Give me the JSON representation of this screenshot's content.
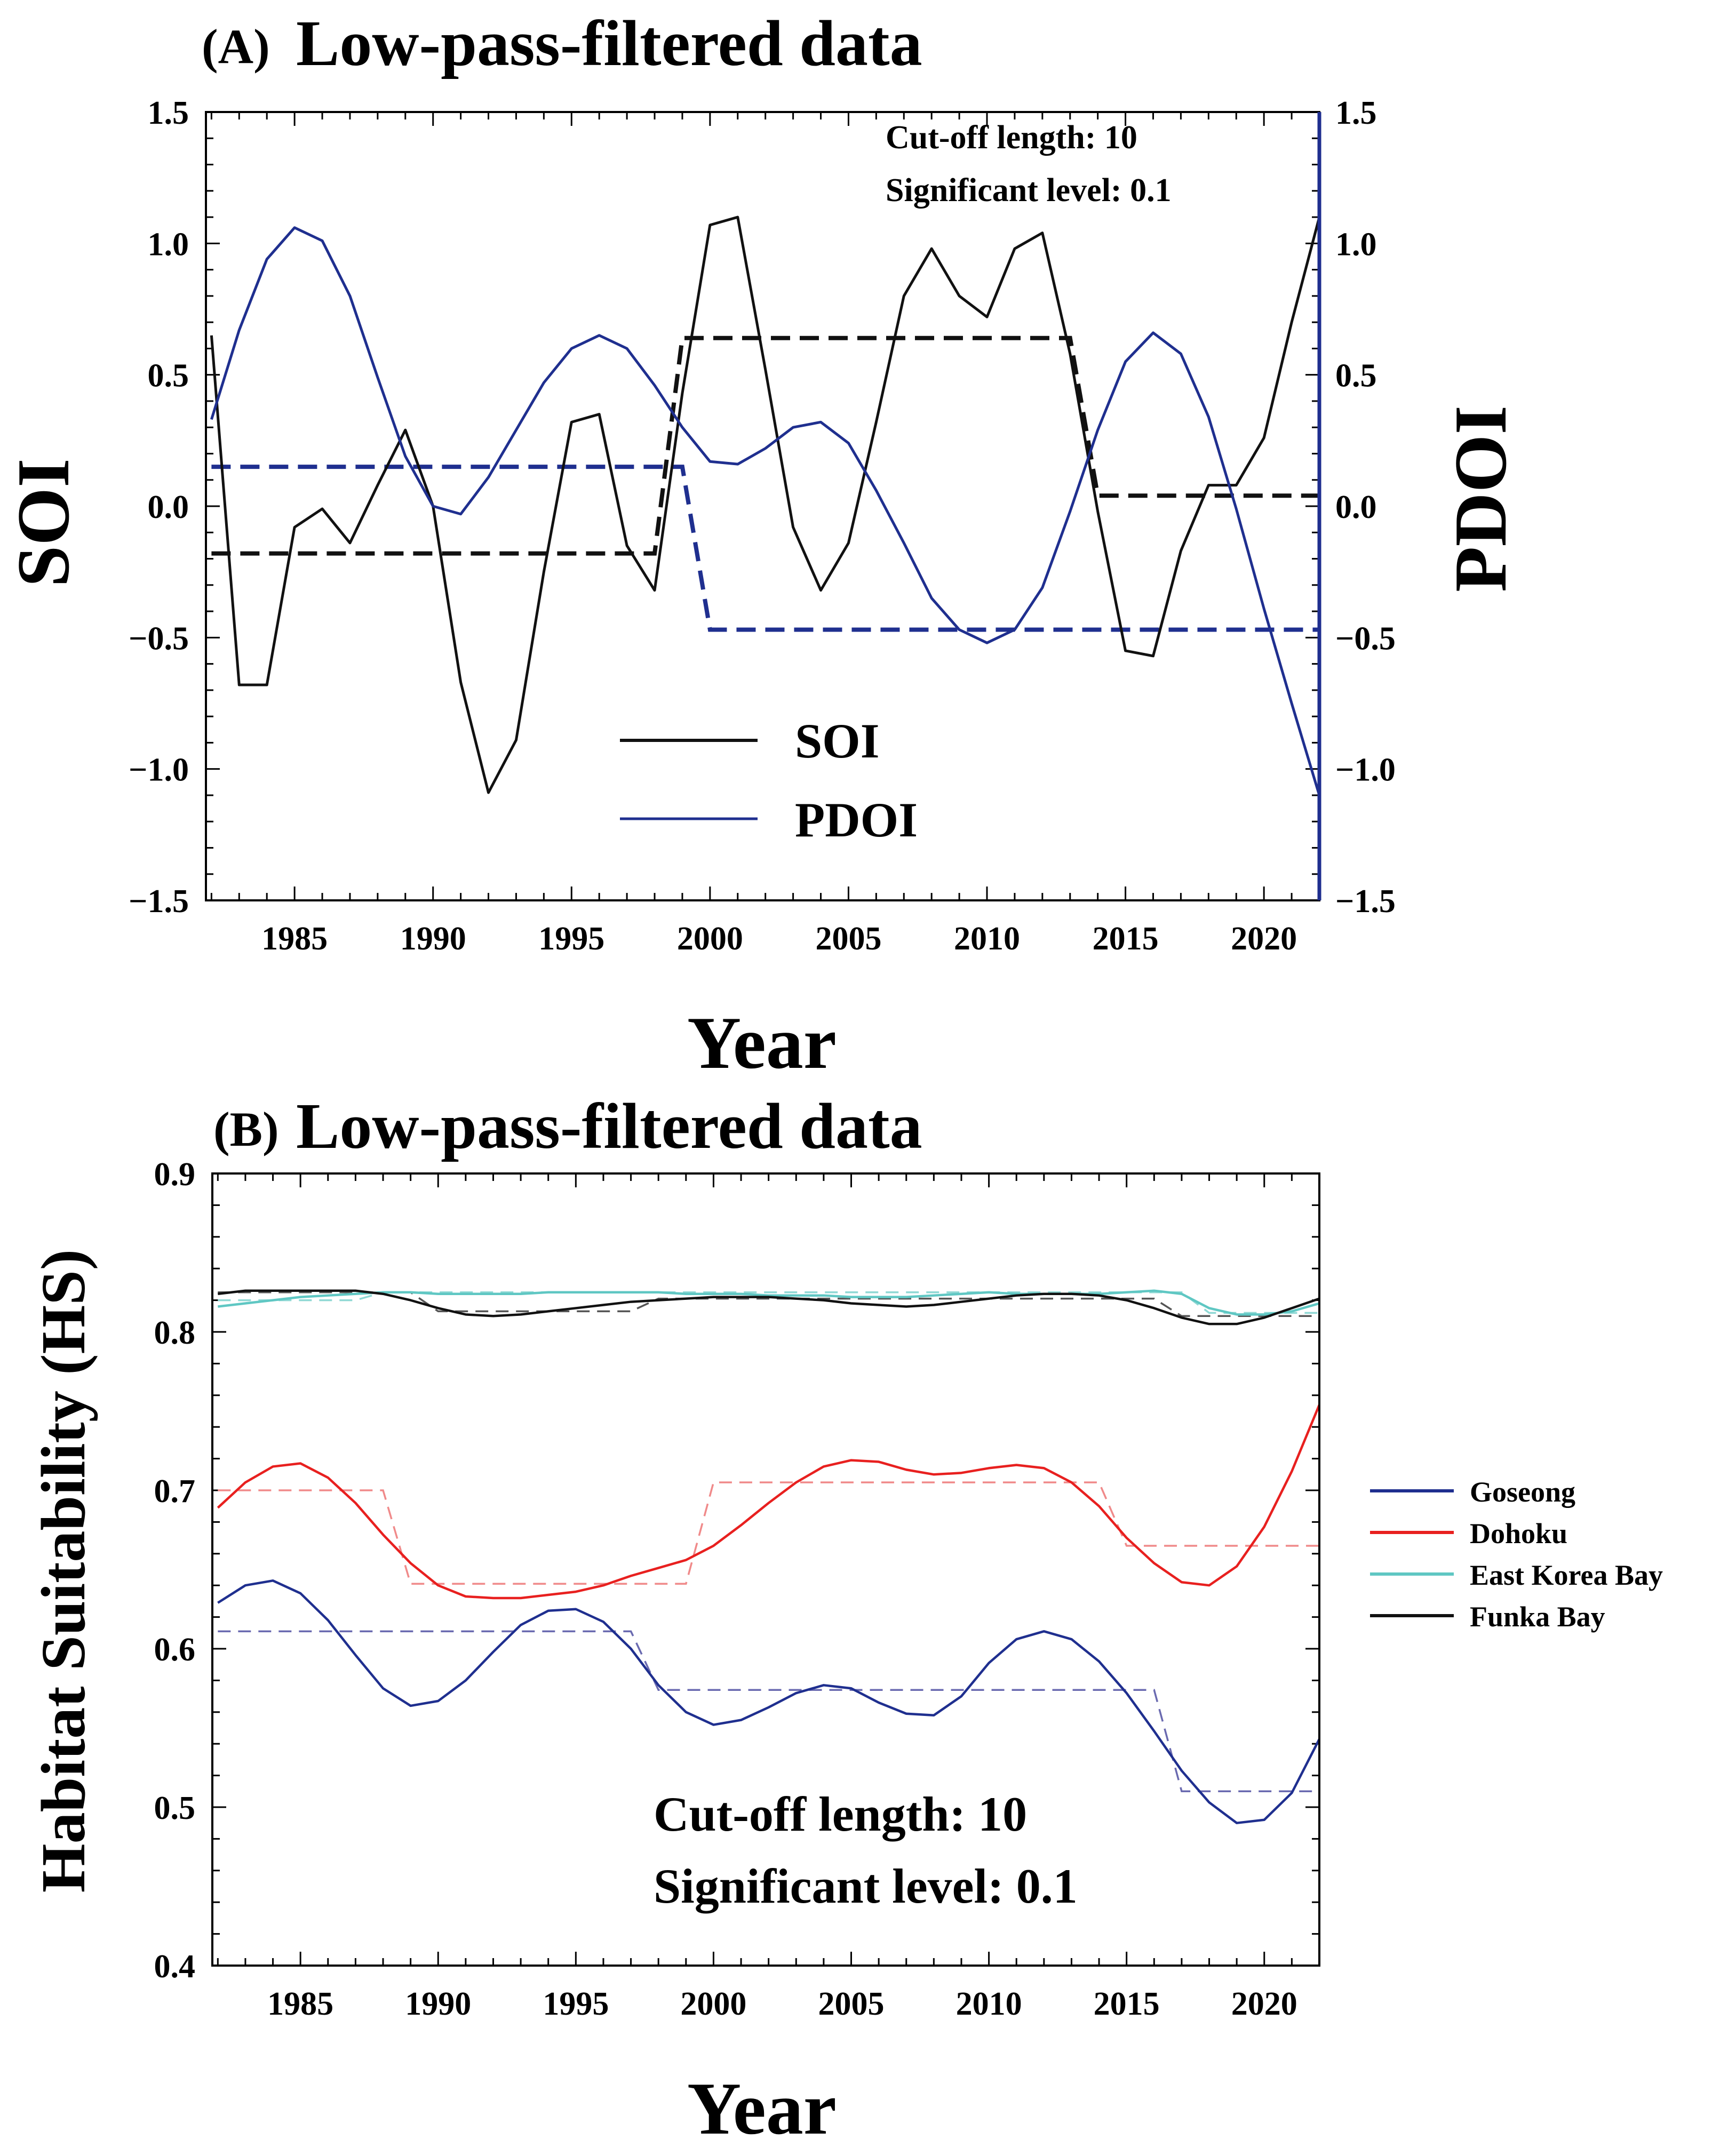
{
  "chart_data": [
    {
      "panel": "A",
      "type": "line",
      "panel_label": "(A)",
      "title": "Low-pass-filtered data",
      "xlabel": "Year",
      "ylabel_left": "SOI",
      "ylabel_right": "PDOI",
      "xlim": [
        1981.8,
        2022
      ],
      "ylim_left": [
        -1.5,
        1.5
      ],
      "ylim_right": [
        -1.5,
        1.5
      ],
      "x_ticks": [
        1985,
        1990,
        1995,
        2000,
        2005,
        2010,
        2015,
        2020
      ],
      "y_ticks": [
        -1.5,
        -1.0,
        -0.5,
        0.0,
        0.5,
        1.0,
        1.5
      ],
      "y_tick_labels": [
        "−1.5",
        "−1.0",
        "−0.5",
        "0.0",
        "0.5",
        "1.0",
        "1.5"
      ],
      "annotations": [
        "Cut-off length: 10",
        "Significant level: 0.1"
      ],
      "legend": [
        "SOI",
        "PDOI"
      ],
      "series": [
        {
          "name": "SOI",
          "color": "#111111",
          "axis": "left",
          "x": [
            1982,
            1983,
            1984,
            1985,
            1986,
            1987,
            1988,
            1989,
            1990,
            1991,
            1992,
            1993,
            1994,
            1995,
            1996,
            1997,
            1998,
            1999,
            2000,
            2001,
            2002,
            2003,
            2004,
            2005,
            2006,
            2007,
            2008,
            2009,
            2010,
            2011,
            2012,
            2013,
            2014,
            2015,
            2016,
            2017,
            2018,
            2019,
            2020,
            2021,
            2022
          ],
          "values": [
            0.65,
            -0.68,
            -0.68,
            -0.08,
            -0.01,
            -0.14,
            0.08,
            0.29,
            0.0,
            -0.67,
            -1.09,
            -0.89,
            -0.25,
            0.32,
            0.35,
            -0.15,
            -0.32,
            0.43,
            1.07,
            1.1,
            0.52,
            -0.08,
            -0.32,
            -0.14,
            0.32,
            0.8,
            0.98,
            0.8,
            0.72,
            0.98,
            1.04,
            0.58,
            -0.02,
            -0.55,
            -0.57,
            -0.17,
            0.08,
            0.08,
            0.26,
            0.7,
            1.1
          ]
        },
        {
          "name": "PDOI",
          "color": "#1f2f8f",
          "axis": "right",
          "x": [
            1982,
            1983,
            1984,
            1985,
            1986,
            1987,
            1988,
            1989,
            1990,
            1991,
            1992,
            1993,
            1994,
            1995,
            1996,
            1997,
            1998,
            1999,
            2000,
            2001,
            2002,
            2003,
            2004,
            2005,
            2006,
            2007,
            2008,
            2009,
            2010,
            2011,
            2012,
            2013,
            2014,
            2015,
            2016,
            2017,
            2018,
            2019,
            2020,
            2021,
            2022
          ],
          "values": [
            0.33,
            0.67,
            0.94,
            1.06,
            1.01,
            0.8,
            0.49,
            0.19,
            0.0,
            -0.03,
            0.11,
            0.29,
            0.47,
            0.6,
            0.65,
            0.6,
            0.46,
            0.3,
            0.17,
            0.16,
            0.22,
            0.3,
            0.32,
            0.24,
            0.06,
            -0.14,
            -0.35,
            -0.47,
            -0.52,
            -0.47,
            -0.31,
            -0.02,
            0.29,
            0.55,
            0.66,
            0.58,
            0.34,
            -0.01,
            -0.39,
            -0.75,
            -1.1
          ]
        }
      ],
      "regime_shifts": [
        {
          "name": "SOI regimes",
          "color": "#111111",
          "x": [
            1982,
            1998,
            1998,
            1999,
            1999,
            2013,
            2013,
            2014,
            2014,
            2022
          ],
          "values": [
            -0.18,
            -0.18,
            -0.18,
            0.64,
            0.64,
            0.64,
            0.64,
            0.04,
            0.04,
            0.04
          ]
        },
        {
          "name": "PDOI regimes",
          "color": "#1f2f8f",
          "x": [
            1982,
            1999,
            2000,
            2022
          ],
          "values": [
            0.15,
            0.15,
            -0.47,
            -0.47
          ]
        }
      ]
    },
    {
      "panel": "B",
      "type": "line",
      "panel_label": "(B)",
      "title": "Low-pass-filtered data",
      "xlabel": "Year",
      "ylabel": "Habitat Suitability (HS)",
      "xlim": [
        1981.8,
        2022
      ],
      "ylim": [
        0.4,
        0.9
      ],
      "x_ticks": [
        1985,
        1990,
        1995,
        2000,
        2005,
        2010,
        2015,
        2020
      ],
      "y_ticks": [
        0.4,
        0.5,
        0.6,
        0.7,
        0.8,
        0.9
      ],
      "y_tick_labels": [
        "0.4",
        "0.5",
        "0.6",
        "0.7",
        "0.8",
        "0.9"
      ],
      "annotations": [
        "Cut-off length: 10",
        "Significant level: 0.1"
      ],
      "legend": [
        "Goseong",
        "Dohoku",
        "East Korea Bay",
        "Funka Bay"
      ],
      "series": [
        {
          "name": "Goseong",
          "color": "#1f2f8f",
          "x": [
            1982,
            1983,
            1984,
            1985,
            1986,
            1987,
            1988,
            1989,
            1990,
            1991,
            1992,
            1993,
            1994,
            1995,
            1996,
            1997,
            1998,
            1999,
            2000,
            2001,
            2002,
            2003,
            2004,
            2005,
            2006,
            2007,
            2008,
            2009,
            2010,
            2011,
            2012,
            2013,
            2014,
            2015,
            2016,
            2017,
            2018,
            2019,
            2020,
            2021,
            2022
          ],
          "values": [
            0.629,
            0.64,
            0.643,
            0.635,
            0.618,
            0.596,
            0.575,
            0.564,
            0.567,
            0.58,
            0.598,
            0.615,
            0.624,
            0.625,
            0.617,
            0.6,
            0.577,
            0.56,
            0.552,
            0.555,
            0.563,
            0.572,
            0.577,
            0.575,
            0.566,
            0.559,
            0.558,
            0.57,
            0.591,
            0.606,
            0.611,
            0.606,
            0.592,
            0.572,
            0.548,
            0.523,
            0.503,
            0.49,
            0.492,
            0.509,
            0.543
          ]
        },
        {
          "name": "Dohoku",
          "color": "#e8201f",
          "x": [
            1982,
            1983,
            1984,
            1985,
            1986,
            1987,
            1988,
            1989,
            1990,
            1991,
            1992,
            1993,
            1994,
            1995,
            1996,
            1997,
            1998,
            1999,
            2000,
            2001,
            2002,
            2003,
            2004,
            2005,
            2006,
            2007,
            2008,
            2009,
            2010,
            2011,
            2012,
            2013,
            2014,
            2015,
            2016,
            2017,
            2018,
            2019,
            2020,
            2021,
            2022
          ],
          "values": [
            0.689,
            0.705,
            0.715,
            0.717,
            0.708,
            0.692,
            0.672,
            0.654,
            0.64,
            0.633,
            0.632,
            0.632,
            0.634,
            0.636,
            0.64,
            0.646,
            0.651,
            0.656,
            0.665,
            0.678,
            0.692,
            0.705,
            0.715,
            0.719,
            0.718,
            0.713,
            0.71,
            0.711,
            0.714,
            0.716,
            0.714,
            0.705,
            0.69,
            0.67,
            0.654,
            0.642,
            0.64,
            0.652,
            0.677,
            0.712,
            0.754
          ]
        },
        {
          "name": "East Korea Bay",
          "color": "#5fc7c3",
          "x": [
            1982,
            1983,
            1984,
            1985,
            1986,
            1987,
            1988,
            1989,
            1990,
            1991,
            1992,
            1993,
            1994,
            1995,
            1996,
            1997,
            1998,
            1999,
            2000,
            2001,
            2002,
            2003,
            2004,
            2005,
            2006,
            2007,
            2008,
            2009,
            2010,
            2011,
            2012,
            2013,
            2014,
            2015,
            2016,
            2017,
            2018,
            2019,
            2020,
            2021,
            2022
          ],
          "values": [
            0.816,
            0.818,
            0.82,
            0.822,
            0.823,
            0.824,
            0.825,
            0.825,
            0.824,
            0.824,
            0.824,
            0.824,
            0.825,
            0.825,
            0.825,
            0.825,
            0.825,
            0.824,
            0.824,
            0.824,
            0.823,
            0.823,
            0.823,
            0.822,
            0.822,
            0.822,
            0.823,
            0.824,
            0.825,
            0.824,
            0.824,
            0.824,
            0.824,
            0.825,
            0.826,
            0.824,
            0.815,
            0.811,
            0.811,
            0.813,
            0.818
          ]
        },
        {
          "name": "Funka Bay",
          "color": "#111111",
          "x": [
            1982,
            1983,
            1984,
            1985,
            1986,
            1987,
            1988,
            1989,
            1990,
            1991,
            1992,
            1993,
            1994,
            1995,
            1996,
            1997,
            1998,
            1999,
            2000,
            2001,
            2002,
            2003,
            2004,
            2005,
            2006,
            2007,
            2008,
            2009,
            2010,
            2011,
            2012,
            2013,
            2014,
            2015,
            2016,
            2017,
            2018,
            2019,
            2020,
            2021,
            2022
          ],
          "values": [
            0.824,
            0.826,
            0.826,
            0.826,
            0.826,
            0.826,
            0.824,
            0.82,
            0.815,
            0.811,
            0.81,
            0.811,
            0.813,
            0.815,
            0.817,
            0.819,
            0.82,
            0.821,
            0.822,
            0.822,
            0.822,
            0.821,
            0.82,
            0.818,
            0.817,
            0.816,
            0.817,
            0.819,
            0.821,
            0.823,
            0.824,
            0.824,
            0.823,
            0.82,
            0.815,
            0.809,
            0.805,
            0.805,
            0.809,
            0.815,
            0.821
          ]
        }
      ],
      "regime_shifts": [
        {
          "name": "Goseong regimes",
          "color": "#6a6ab0",
          "x": [
            1982,
            1997,
            1998,
            2016,
            2017,
            2022
          ],
          "values": [
            0.611,
            0.611,
            0.574,
            0.574,
            0.51,
            0.51
          ]
        },
        {
          "name": "Dohoku regimes",
          "color": "#f08a8a",
          "x": [
            1982,
            1988,
            1989,
            1999,
            2000,
            2014,
            2015,
            2022
          ],
          "values": [
            0.7,
            0.7,
            0.641,
            0.641,
            0.705,
            0.705,
            0.665,
            0.665
          ]
        },
        {
          "name": "East Korea Bay regimes",
          "color": "#8fd8d4",
          "x": [
            1982,
            1987,
            1988,
            2017,
            2018,
            2022
          ],
          "values": [
            0.82,
            0.82,
            0.825,
            0.825,
            0.812,
            0.812
          ]
        },
        {
          "name": "Funka Bay regimes",
          "color": "#555555",
          "x": [
            1982,
            1989,
            1990,
            1997,
            1998,
            2016,
            2017,
            2022
          ],
          "values": [
            0.825,
            0.825,
            0.813,
            0.813,
            0.821,
            0.821,
            0.81,
            0.81
          ]
        }
      ]
    }
  ]
}
